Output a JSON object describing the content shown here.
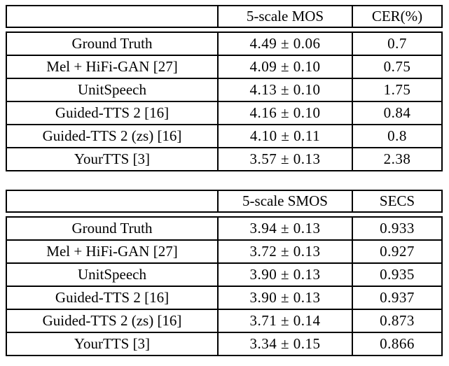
{
  "colors": {
    "border": "#000000",
    "text": "#000000",
    "background": "#ffffff"
  },
  "tables": [
    {
      "id": "naturalness-evaluation",
      "columns": [
        "",
        "5-scale MOS",
        "CER(%)"
      ],
      "rows": [
        [
          "Ground Truth",
          "4.49 ± 0.06",
          "0.7"
        ],
        [
          "Mel + HiFi-GAN [27]",
          "4.09 ± 0.10",
          "0.75"
        ],
        [
          "UnitSpeech",
          "4.13 ± 0.10",
          "1.75"
        ],
        [
          "Guided-TTS 2 [16]",
          "4.16 ± 0.10",
          "0.84"
        ],
        [
          "Guided-TTS 2 (zs) [16]",
          "4.10 ± 0.11",
          "0.8"
        ],
        [
          "YourTTS [3]",
          "3.57 ± 0.13",
          "2.38"
        ]
      ]
    },
    {
      "id": "similarity-evaluation",
      "columns": [
        "",
        "5-scale SMOS",
        "SECS"
      ],
      "rows": [
        [
          "Ground Truth",
          "3.94 ± 0.13",
          "0.933"
        ],
        [
          "Mel + HiFi-GAN [27]",
          "3.72 ± 0.13",
          "0.927"
        ],
        [
          "UnitSpeech",
          "3.90 ± 0.13",
          "0.935"
        ],
        [
          "Guided-TTS 2 [16]",
          "3.90 ± 0.13",
          "0.937"
        ],
        [
          "Guided-TTS 2 (zs) [16]",
          "3.71 ± 0.14",
          "0.873"
        ],
        [
          "YourTTS [3]",
          "3.34 ± 0.15",
          "0.866"
        ]
      ]
    }
  ]
}
